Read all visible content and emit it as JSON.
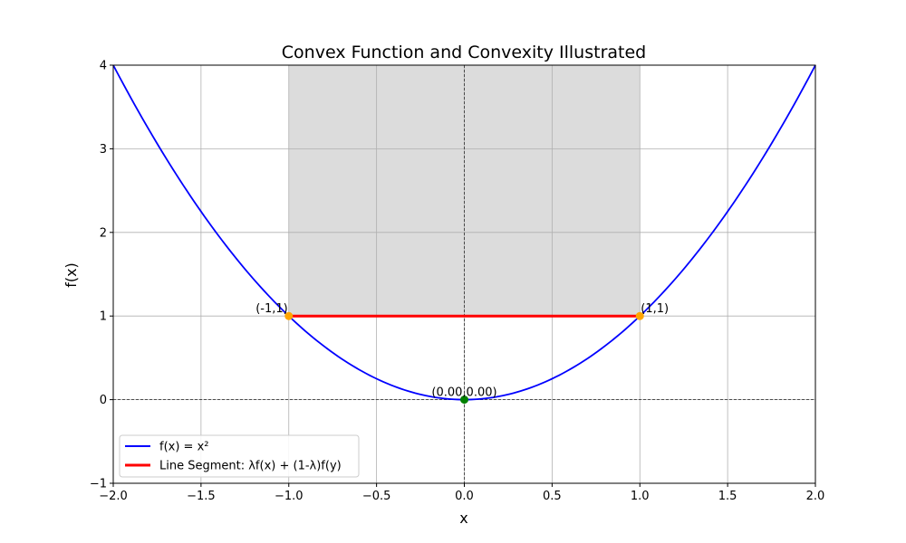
{
  "chart_data": {
    "type": "line",
    "title": "Convex Function and Convexity Illustrated",
    "xlabel": "x",
    "ylabel": "f(x)",
    "xlim": [
      -2,
      2
    ],
    "ylim": [
      -1,
      4
    ],
    "xticks": [
      -2.0,
      -1.5,
      -1.0,
      -0.5,
      0.0,
      0.5,
      1.0,
      1.5,
      2.0
    ],
    "xtick_labels": [
      "−2.0",
      "−1.5",
      "−1.0",
      "−0.5",
      "0.0",
      "0.5",
      "1.0",
      "1.5",
      "2.0"
    ],
    "yticks": [
      -1,
      0,
      1,
      2,
      3,
      4
    ],
    "ytick_labels": [
      "−1",
      "0",
      "1",
      "2",
      "3",
      "4"
    ],
    "grid": true,
    "legend_position": "lower-left",
    "reference_lines": {
      "x": 0,
      "y": 0
    },
    "shaded_region": {
      "x_from": -1,
      "x_to": 1,
      "y_from": 1,
      "y_to": 4,
      "color": "#dcdcdc"
    },
    "series": [
      {
        "name": "f(x) = x²",
        "kind": "curve",
        "function": "x^2",
        "x_range": [
          -2,
          2
        ],
        "color": "#0000ff"
      },
      {
        "name": "Line Segment: λf(x) + (1-λ)f(y)",
        "kind": "segment",
        "x": [
          -1,
          1
        ],
        "y": [
          1,
          1
        ],
        "color": "#ff0000"
      }
    ],
    "points": [
      {
        "x": -1,
        "y": 1,
        "label": "(-1,1)",
        "color": "#ffa500",
        "label_side": "left"
      },
      {
        "x": 1,
        "y": 1,
        "label": "(1,1)",
        "color": "#ffa500",
        "label_side": "right"
      },
      {
        "x": 0,
        "y": 0,
        "label": "(0.00,0.00)",
        "color": "#008000",
        "label_side": "center"
      }
    ]
  }
}
